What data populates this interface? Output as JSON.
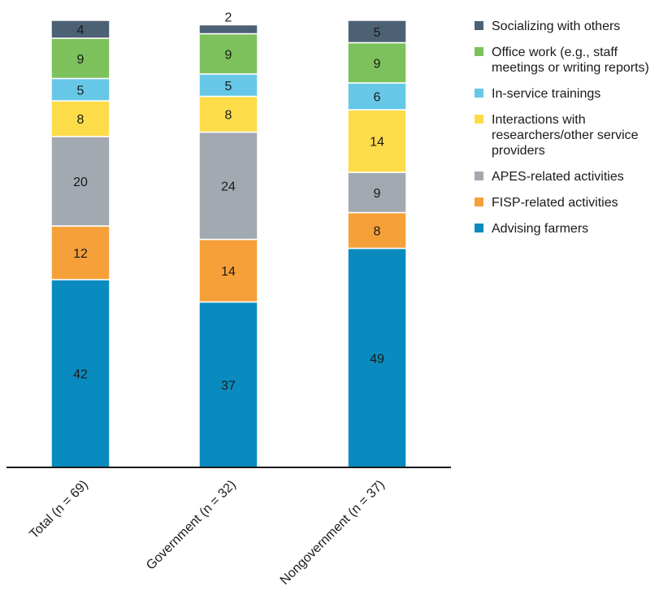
{
  "chart_data": {
    "type": "bar",
    "stacked": true,
    "categories": [
      "Total (n = 69)",
      "Government (n = 32)",
      "Nongovernment (n = 37)"
    ],
    "series": [
      {
        "name": "Advising farmers",
        "color": "#0a8bbf",
        "values": [
          42,
          37,
          49
        ]
      },
      {
        "name": "FISP-related activities",
        "color": "#f6a03a",
        "values": [
          12,
          14,
          8
        ]
      },
      {
        "name": "APES-related activities",
        "color": "#a2a9b0",
        "values": [
          20,
          24,
          9
        ]
      },
      {
        "name": "Interactions with researchers/other service providers",
        "color": "#fddc4a",
        "values": [
          8,
          8,
          14
        ]
      },
      {
        "name": "In-service trainings",
        "color": "#66c8e6",
        "values": [
          5,
          5,
          6
        ]
      },
      {
        "name": "Office work (e.g., staff meetings or writing reports)",
        "color": "#7cc15b",
        "values": [
          9,
          9,
          9
        ]
      },
      {
        "name": "Socializing with others",
        "color": "#4d6175",
        "values": [
          4,
          2,
          5
        ]
      }
    ],
    "legend": {
      "placement": "right",
      "entries": [
        {
          "series": 6,
          "lines": [
            "Socializing with others"
          ]
        },
        {
          "series": 5,
          "lines": [
            "Office work (e.g., staff",
            "meetings or writing reports)"
          ]
        },
        {
          "series": 4,
          "lines": [
            "In-service trainings"
          ]
        },
        {
          "series": 3,
          "lines": [
            "Interactions with",
            "researchers/other service",
            "providers"
          ]
        },
        {
          "series": 2,
          "lines": [
            "APES-related activities"
          ]
        },
        {
          "series": 1,
          "lines": [
            "FISP-related activities"
          ]
        },
        {
          "series": 0,
          "lines": [
            "Advising farmers"
          ]
        }
      ]
    },
    "ylim": [
      0,
      100
    ],
    "grid": false
  }
}
